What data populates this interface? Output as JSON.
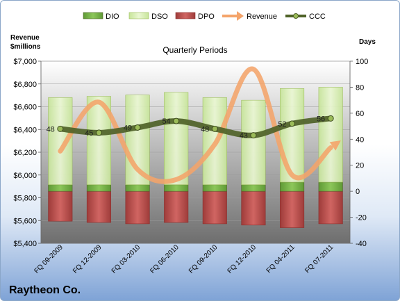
{
  "chart_data": {
    "type": "bar",
    "title": "Quarterly Periods",
    "company": "Raytheon Co.",
    "ylabel_left_line1": "Revenue",
    "ylabel_left_line2": "$millions",
    "ylabel_right": "Days",
    "categories": [
      "FQ 09-2009",
      "FQ 12-2009",
      "FQ 03-2010",
      "FQ 06-2010",
      "FQ 09-2010",
      "FQ 12-2010",
      "FQ 04-2011",
      "FQ 07-2011"
    ],
    "left_axis": {
      "min": 5400,
      "max": 7000,
      "step": 200,
      "prefix": "$"
    },
    "right_axis": {
      "min": -40,
      "max": 100,
      "step": 20
    },
    "grid": true,
    "legend_position": "top",
    "series": [
      {
        "name": "DIO",
        "type": "stacked-bar",
        "axis": "right",
        "color": "#7ab648",
        "values": [
          5,
          5,
          5,
          5,
          5,
          5,
          7,
          7
        ]
      },
      {
        "name": "DSO",
        "type": "stacked-bar",
        "axis": "right",
        "color": "#d8f0b0",
        "values": [
          67,
          68,
          69,
          71,
          67,
          65,
          72,
          73
        ]
      },
      {
        "name": "DPO",
        "type": "negative-bar",
        "axis": "right",
        "color": "#c0504d",
        "values": [
          -23,
          -24,
          -25,
          -24,
          -25,
          -26,
          -28,
          -25
        ]
      },
      {
        "name": "Revenue",
        "type": "line",
        "axis": "left",
        "color": "#f4a46a",
        "values": [
          6210,
          6640,
          6050,
          5960,
          6270,
          6930,
          6000,
          6240
        ]
      },
      {
        "name": "CCC",
        "type": "line",
        "axis": "right",
        "color": "#4f6228",
        "values": [
          48,
          45,
          49,
          54,
          48,
          43,
          52,
          56
        ],
        "labels": [
          "48",
          "45",
          "49",
          "54",
          "48",
          "43",
          "52",
          "56"
        ]
      }
    ]
  }
}
